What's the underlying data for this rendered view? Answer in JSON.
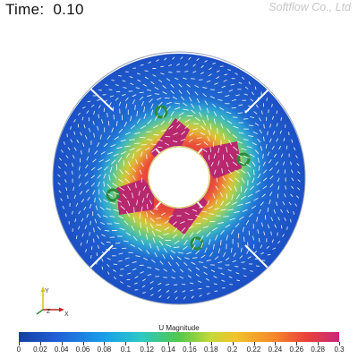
{
  "header": {
    "time_label": "Time:",
    "time_value": "0.10"
  },
  "watermark": "Softflow Co., Ltd",
  "axes": {
    "y": "Y",
    "z": "Z",
    "x": "X"
  },
  "colorbar": {
    "title": "U Magnitude",
    "ticks": [
      "0",
      "0.02",
      "0.04",
      "0.06",
      "0.08",
      "0.1",
      "0.12",
      "0.14",
      "0.16",
      "0.18",
      "0.2",
      "0.22",
      "0.24",
      "0.26",
      "0.28",
      "0.3"
    ],
    "min": 0,
    "max": 0.3
  },
  "colors": {
    "low": "#1f55c9",
    "mid": "#2cc07a",
    "high": "#f2d02a",
    "peak": "#c8286a"
  }
}
